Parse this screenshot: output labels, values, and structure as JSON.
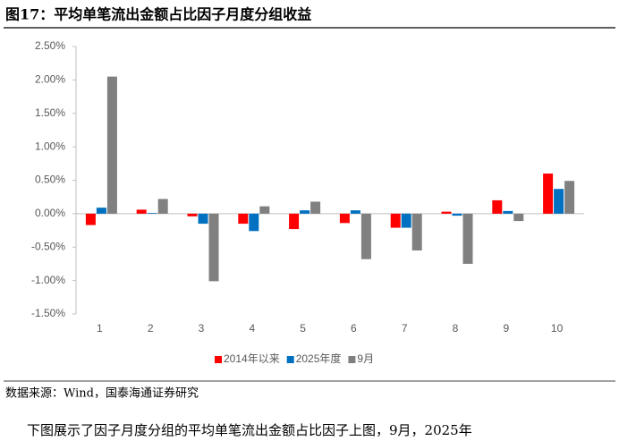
{
  "header": {
    "title": "图17：平均单笔流出金额占比因子月度分组收益"
  },
  "source": "数据来源：Wind，国泰海通证券研究",
  "body_text": "下图展示了因子月度分组的平均单笔流出金额占比因子上图，9月，2025年",
  "chart_data": {
    "type": "bar",
    "categories": [
      "1",
      "2",
      "3",
      "4",
      "5",
      "6",
      "7",
      "8",
      "9",
      "10"
    ],
    "series": [
      {
        "name": "2014年以来",
        "color": "#ff0000",
        "values": [
          -0.17,
          0.06,
          -0.04,
          -0.15,
          -0.23,
          -0.14,
          -0.21,
          0.03,
          0.2,
          0.6
        ]
      },
      {
        "name": "2025年度",
        "color": "#0070c0",
        "values": [
          0.09,
          0.01,
          -0.15,
          -0.26,
          0.05,
          0.05,
          -0.21,
          -0.03,
          0.04,
          0.37
        ]
      },
      {
        "name": "9月",
        "color": "#808080",
        "values": [
          2.05,
          0.22,
          -1.01,
          0.11,
          0.18,
          -0.68,
          -0.55,
          -0.75,
          -0.11,
          0.49
        ]
      }
    ],
    "ylim": [
      -1.5,
      2.5
    ],
    "yticks": [
      {
        "value": -1.5,
        "label": "-1.50%"
      },
      {
        "value": -1.0,
        "label": "-1.00%"
      },
      {
        "value": -0.5,
        "label": "-0.50%"
      },
      {
        "value": 0,
        "label": "0.00%"
      },
      {
        "value": 0.5,
        "label": "0.50%"
      },
      {
        "value": 1.0,
        "label": "1.00%"
      },
      {
        "value": 1.5,
        "label": "1.50%"
      },
      {
        "value": 2.0,
        "label": "2.00%"
      },
      {
        "value": 2.5,
        "label": "2.50%"
      }
    ],
    "legend": "bottom",
    "grid": false
  }
}
